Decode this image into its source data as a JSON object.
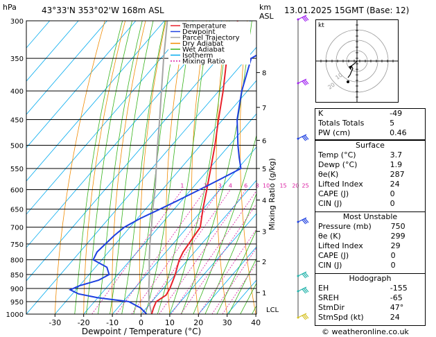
{
  "header": {
    "location": "43°33'N  353°02'W  168m  ASL",
    "datetime": "13.01.2025  15GMT  (Base: 12)",
    "hpa_label": "hPa",
    "km_label": "km",
    "asl_label": "ASL"
  },
  "chart_data": {
    "type": "skew-t log-p",
    "xlabel": "Dewpoint / Temperature (°C)",
    "right_axis_label": "Mixing Ratio (g/kg)",
    "pressure_levels": [
      300,
      350,
      400,
      450,
      500,
      550,
      600,
      650,
      700,
      750,
      800,
      850,
      900,
      950,
      1000
    ],
    "temperature_ticks": [
      -30,
      -20,
      -10,
      0,
      10,
      20,
      30,
      40
    ],
    "xlim": [
      -40,
      40
    ],
    "plim": [
      1000,
      300
    ],
    "km_ticks": [
      {
        "km": "1",
        "p": 915
      },
      {
        "km": "2",
        "p": 805
      },
      {
        "km": "3",
        "p": 712
      },
      {
        "km": "4",
        "p": 626
      },
      {
        "km": "5",
        "p": 550
      },
      {
        "km": "6",
        "p": 490
      },
      {
        "km": "7",
        "p": 428
      },
      {
        "km": "8",
        "p": 371
      }
    ],
    "lcl": {
      "label": "LCL",
      "p": 995
    },
    "mixing_ratios": [
      "1",
      "2",
      "3",
      "4",
      "6",
      "8",
      "10",
      "15",
      "20",
      "25"
    ],
    "legend": [
      {
        "name": "Temperature",
        "color": "#e8212a"
      },
      {
        "name": "Dewpoint",
        "color": "#1d3fe0"
      },
      {
        "name": "Parcel Trajectory",
        "color": "#a6a6a6"
      },
      {
        "name": "Dry Adiabat",
        "color": "#f08a00"
      },
      {
        "name": "Wet Adiabat",
        "color": "#35b31a"
      },
      {
        "name": "Isotherm",
        "color": "#00aaee"
      },
      {
        "name": "Mixing Ratio",
        "color": "#d91aa0"
      }
    ],
    "temperature": [
      [
        1000,
        3.7
      ],
      [
        975,
        2.5
      ],
      [
        950,
        1.5
      ],
      [
        925,
        3
      ],
      [
        900,
        2.3
      ],
      [
        875,
        1.2
      ],
      [
        850,
        0
      ],
      [
        825,
        -1.5
      ],
      [
        800,
        -3
      ],
      [
        775,
        -4
      ],
      [
        750,
        -4.5
      ],
      [
        725,
        -5
      ],
      [
        700,
        -5.5
      ],
      [
        650,
        -10
      ],
      [
        600,
        -14.5
      ],
      [
        550,
        -19.5
      ],
      [
        500,
        -25
      ],
      [
        450,
        -31.5
      ],
      [
        400,
        -38.5
      ],
      [
        350,
        -47
      ],
      [
        300,
        -54.5
      ]
    ],
    "dewpoint": [
      [
        1000,
        1.9
      ],
      [
        975,
        -2
      ],
      [
        950,
        -8
      ],
      [
        935,
        -20
      ],
      [
        920,
        -28
      ],
      [
        905,
        -32
      ],
      [
        890,
        -30
      ],
      [
        870,
        -25
      ],
      [
        850,
        -23
      ],
      [
        825,
        -26
      ],
      [
        800,
        -33
      ],
      [
        775,
        -34
      ],
      [
        750,
        -33.5
      ],
      [
        725,
        -33
      ],
      [
        700,
        -32
      ],
      [
        675,
        -29
      ],
      [
        650,
        -25
      ],
      [
        625,
        -21
      ],
      [
        600,
        -17
      ],
      [
        575,
        -13
      ],
      [
        550,
        -9
      ],
      [
        525,
        -13
      ],
      [
        500,
        -17
      ],
      [
        450,
        -25
      ],
      [
        400,
        -32
      ],
      [
        350,
        -38.5
      ],
      [
        325,
        -33
      ],
      [
        300,
        -27
      ]
    ],
    "parcel": [
      [
        1000,
        3.7
      ],
      [
        950,
        -1
      ],
      [
        900,
        -5
      ],
      [
        850,
        -9
      ],
      [
        800,
        -13.5
      ],
      [
        750,
        -18
      ],
      [
        700,
        -22.5
      ],
      [
        650,
        -27.5
      ],
      [
        600,
        -32.5
      ],
      [
        550,
        -38.5
      ],
      [
        500,
        -45
      ],
      [
        450,
        -52
      ],
      [
        400,
        -60
      ],
      [
        350,
        -69
      ],
      [
        300,
        -79
      ]
    ]
  },
  "indices": {
    "k": {
      "label": "K",
      "value": "-49"
    },
    "tt": {
      "label": "Totals Totals",
      "value": "5"
    },
    "pw": {
      "label": "PW (cm)",
      "value": "0.46"
    }
  },
  "surface": {
    "title": "Surface",
    "temp": {
      "label": "Temp (°C)",
      "value": "3.7"
    },
    "dewp": {
      "label": "Dewp (°C)",
      "value": "1.9"
    },
    "theta": {
      "label": "θe(K)",
      "value": "287"
    },
    "li": {
      "label": "Lifted Index",
      "value": "24"
    },
    "cape": {
      "label": "CAPE (J)",
      "value": "0"
    },
    "cin": {
      "label": "CIN (J)",
      "value": "0"
    }
  },
  "most_unstable": {
    "title": "Most Unstable",
    "pressure": {
      "label": "Pressure (mb)",
      "value": "750"
    },
    "theta": {
      "label": "θe (K)",
      "value": "299"
    },
    "li": {
      "label": "Lifted Index",
      "value": "29"
    },
    "cape": {
      "label": "CAPE (J)",
      "value": "0"
    },
    "cin": {
      "label": "CIN (J)",
      "value": "0"
    }
  },
  "hodograph_table": {
    "title": "Hodograph",
    "eh": {
      "label": "EH",
      "value": "-155"
    },
    "sreh": {
      "label": "SREH",
      "value": "-65"
    },
    "stmdir": {
      "label": "StmDir",
      "value": "47°"
    },
    "stmspd": {
      "label": "StmSpd (kt)",
      "value": "24"
    }
  },
  "hodograph": {
    "unit_label": "kt",
    "ring_labels": [
      "10",
      "20"
    ]
  },
  "copyright": "© weatheronline.co.uk"
}
